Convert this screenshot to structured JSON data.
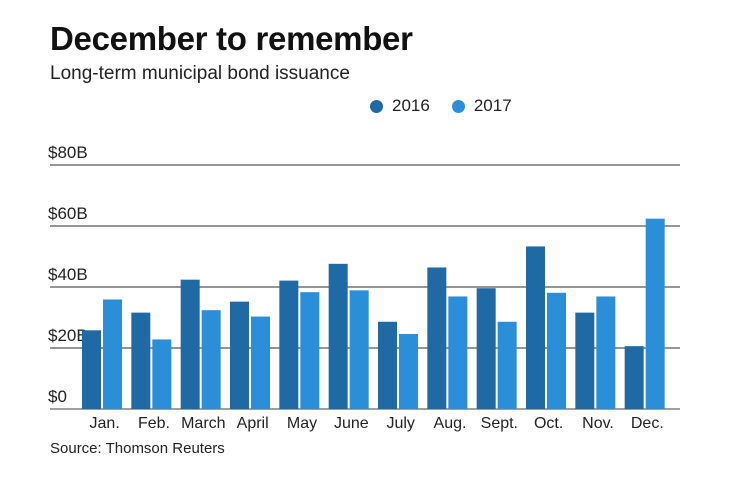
{
  "header": {
    "title": "December to remember",
    "subtitle": "Long-term municipal bond issuance"
  },
  "source": "Source: Thomson Reuters",
  "chart_data": {
    "type": "bar",
    "title": "December to remember",
    "subtitle": "Long-term municipal bond issuance",
    "xlabel": "",
    "ylabel": "",
    "categories": [
      "Jan.",
      "Feb.",
      "March",
      "April",
      "May",
      "June",
      "July",
      "Aug.",
      "Sept.",
      "Oct.",
      "Nov.",
      "Dec."
    ],
    "series": [
      {
        "name": "2016",
        "color": "#1f6aa5",
        "values": [
          25.8,
          31.6,
          42.4,
          35.2,
          42.1,
          47.6,
          28.6,
          46.4,
          39.6,
          53.3,
          31.6,
          20.6
        ]
      },
      {
        "name": "2017",
        "color": "#2a8fd8",
        "values": [
          35.9,
          22.8,
          32.4,
          30.3,
          38.3,
          38.9,
          24.6,
          36.9,
          28.6,
          38.1,
          36.9,
          62.4
        ]
      }
    ],
    "ylim": [
      0,
      80
    ],
    "yticks": [
      0,
      20,
      40,
      60,
      80
    ],
    "ytick_labels": [
      "$0",
      "$20B",
      "$40B",
      "$60B",
      "$80B"
    ],
    "grid": true,
    "legend": "top-right"
  }
}
